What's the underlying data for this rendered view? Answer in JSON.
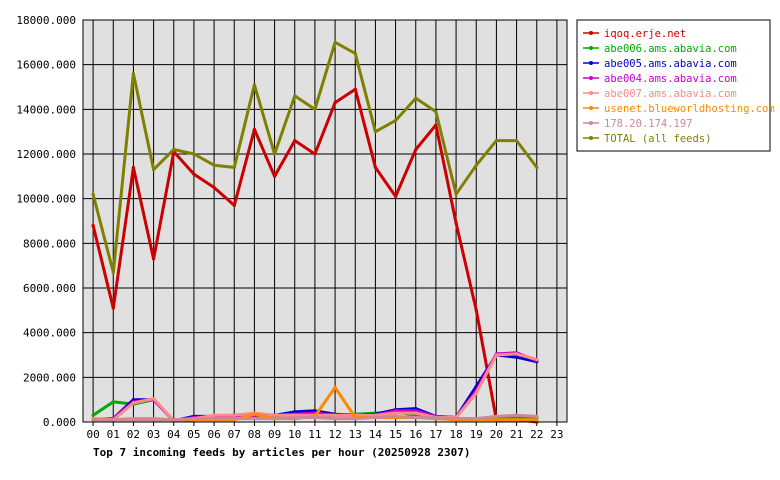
{
  "chart_data": {
    "type": "line",
    "title": "Top 7 incoming feeds by articles per hour (20250928 2307)",
    "xlabel": "",
    "ylabel": "",
    "ylim": [
      0,
      18000
    ],
    "y_ticks": [
      "0.000",
      "2000.000",
      "4000.000",
      "6000.000",
      "8000.000",
      "10000.000",
      "12000.000",
      "14000.000",
      "16000.000",
      "18000.000"
    ],
    "y_tick_values": [
      0,
      2000,
      4000,
      6000,
      8000,
      10000,
      12000,
      14000,
      16000,
      18000
    ],
    "categories": [
      "00",
      "01",
      "02",
      "03",
      "04",
      "05",
      "06",
      "07",
      "08",
      "09",
      "10",
      "11",
      "12",
      "13",
      "14",
      "15",
      "16",
      "17",
      "18",
      "19",
      "20",
      "21",
      "22",
      "23"
    ],
    "grid": true,
    "legend_position": "right",
    "series": [
      {
        "name": "iqoq.erje.net",
        "color": "#cc0000",
        "values": [
          8800,
          5100,
          11400,
          7300,
          12100,
          11100,
          10500,
          9700,
          13100,
          11000,
          12600,
          12000,
          14300,
          14900,
          11400,
          10100,
          12200,
          13300,
          8900,
          5000,
          100,
          100,
          0,
          null
        ]
      },
      {
        "name": "abe006.ams.abavia.com",
        "color": "#00aa00",
        "values": [
          300,
          900,
          800,
          1000,
          50,
          100,
          150,
          200,
          250,
          200,
          300,
          250,
          300,
          350,
          400,
          450,
          300,
          200,
          150,
          150,
          200,
          200,
          150,
          null
        ]
      },
      {
        "name": "abe005.ams.abavia.com",
        "color": "#0000cc",
        "values": [
          100,
          150,
          1000,
          1000,
          50,
          250,
          250,
          300,
          350,
          300,
          450,
          500,
          350,
          300,
          350,
          550,
          600,
          250,
          200,
          1600,
          3000,
          2900,
          2700,
          null
        ]
      },
      {
        "name": "abe004.ams.abavia.com",
        "color": "#cc00cc",
        "values": [
          100,
          150,
          900,
          1000,
          50,
          200,
          250,
          250,
          300,
          300,
          350,
          400,
          300,
          300,
          300,
          500,
          500,
          250,
          200,
          1400,
          3050,
          3100,
          2750,
          null
        ]
      },
      {
        "name": "abe007.ams.abavia.com",
        "color": "#ff8888",
        "values": [
          100,
          100,
          850,
          1050,
          50,
          150,
          300,
          300,
          400,
          300,
          300,
          300,
          300,
          300,
          300,
          400,
          400,
          200,
          200,
          1300,
          3000,
          3050,
          2800,
          null
        ]
      },
      {
        "name": "usenet.blueworldhosting.com",
        "color": "#ff8800",
        "values": [
          150,
          100,
          150,
          150,
          100,
          100,
          100,
          100,
          350,
          150,
          150,
          250,
          1550,
          200,
          200,
          200,
          200,
          150,
          100,
          100,
          100,
          100,
          100,
          null
        ]
      },
      {
        "name": "178.20.174.197",
        "color": "#cc8899",
        "values": [
          100,
          100,
          100,
          100,
          100,
          150,
          150,
          150,
          150,
          150,
          200,
          200,
          150,
          150,
          200,
          250,
          200,
          200,
          150,
          150,
          250,
          300,
          250,
          null
        ]
      },
      {
        "name": "TOTAL (all feeds)",
        "color": "#808000",
        "values": [
          10200,
          6700,
          15600,
          11300,
          12200,
          12000,
          11500,
          11400,
          15100,
          12000,
          14600,
          14000,
          17000,
          16500,
          13000,
          13500,
          14500,
          13900,
          10200,
          11500,
          12600,
          12600,
          11400,
          null
        ]
      }
    ]
  }
}
